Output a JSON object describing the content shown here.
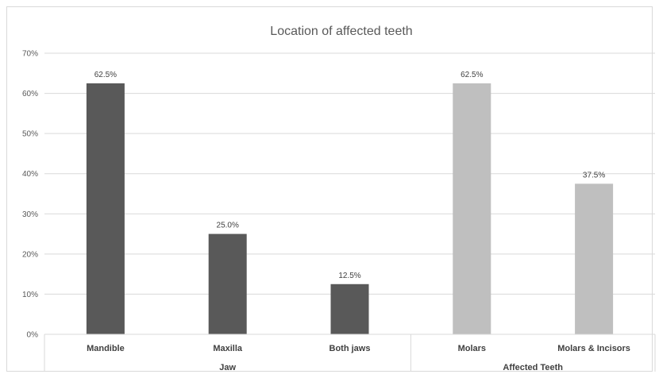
{
  "chart_data": {
    "type": "bar",
    "title": "Location of affected teeth",
    "ylim": [
      0,
      70
    ],
    "yticks": [
      "0%",
      "10%",
      "20%",
      "30%",
      "40%",
      "50%",
      "60%",
      "70%"
    ],
    "grid": true,
    "legend": "none",
    "categories": [
      "Mandible",
      "Maxilla",
      "Both jaws",
      "Molars",
      "Molars & Incisors"
    ],
    "values": [
      62.5,
      25.0,
      12.5,
      62.5,
      37.5
    ],
    "data_labels": [
      "62.5%",
      "25.0%",
      "12.5%",
      "62.5%",
      "37.5%"
    ],
    "groups": [
      {
        "name": "Jaw",
        "count": 3,
        "color": "#595959"
      },
      {
        "name": "Affected Teeth",
        "count": 2,
        "color": "#bfbfbf"
      }
    ]
  }
}
